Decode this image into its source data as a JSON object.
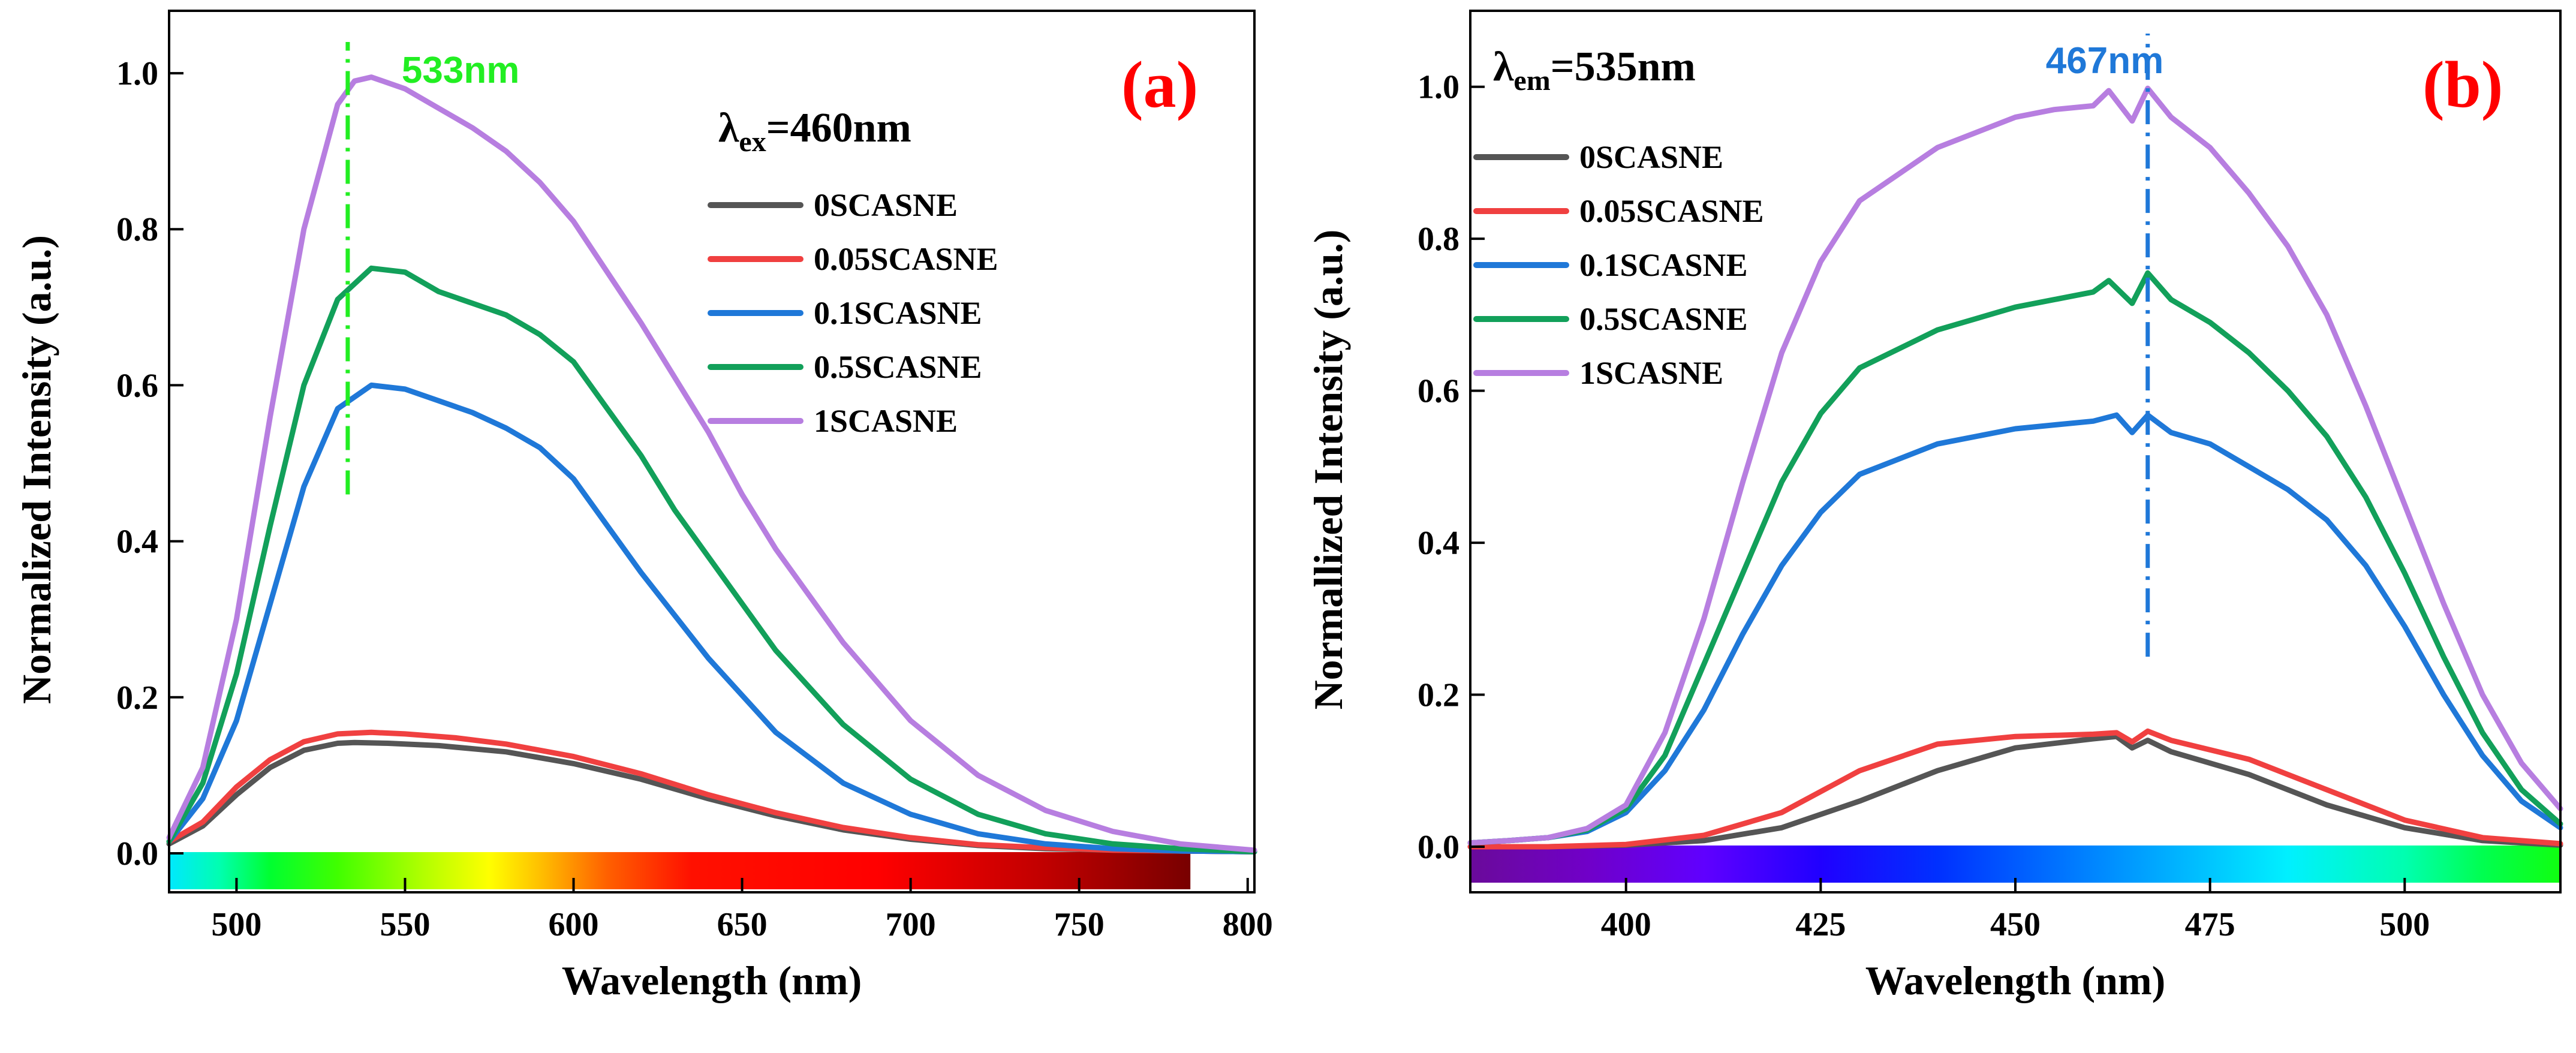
{
  "series_colors": {
    "0SCASNE": "#555555",
    "0.05SCASNE": "#f04040",
    "0.1SCASNE": "#1f78d8",
    "0.5SCASNE": "#12a05a",
    "1SCASNE": "#b77ee0"
  },
  "chart_data": [
    {
      "type": "line",
      "panel": "(a)",
      "condition": {
        "symbol": "λ",
        "subscript": "ex",
        "value": "=460nm"
      },
      "xlabel": "Wavelength (nm)",
      "ylabel": "Normalized Intensity (a.u.)",
      "xlim": [
        480,
        802
      ],
      "ylim": [
        -0.05,
        1.08
      ],
      "xticks": [
        500,
        550,
        600,
        650,
        700,
        750,
        800
      ],
      "yticks": [
        0.0,
        0.2,
        0.4,
        0.6,
        0.8,
        1.0
      ],
      "yticks_text": [
        "0.0",
        "0.2",
        "0.4",
        "0.6",
        "0.8",
        "1.0"
      ],
      "peak_marker": {
        "x": 533,
        "label": "533nm",
        "color": "#22ee22",
        "y_from": 0.46,
        "y_to": 1.04
      },
      "spectrum_bar": {
        "x_from": 480,
        "x_to": 783,
        "stops": [
          {
            "x": 480,
            "color": "#00e8ff"
          },
          {
            "x": 495,
            "color": "#00ffb0"
          },
          {
            "x": 510,
            "color": "#00ff30"
          },
          {
            "x": 530,
            "color": "#40ff00"
          },
          {
            "x": 555,
            "color": "#b0ff00"
          },
          {
            "x": 575,
            "color": "#ffff00"
          },
          {
            "x": 590,
            "color": "#ffc000"
          },
          {
            "x": 610,
            "color": "#ff6000"
          },
          {
            "x": 635,
            "color": "#ff1000"
          },
          {
            "x": 690,
            "color": "#ff0000"
          },
          {
            "x": 740,
            "color": "#c00000"
          },
          {
            "x": 783,
            "color": "#780000"
          }
        ]
      },
      "legend": {
        "placement": "top-right",
        "entries": [
          "0SCASNE",
          "0.05SCASNE",
          "0.1SCASNE",
          "0.5SCASNE",
          "1SCASNE"
        ]
      },
      "series": [
        {
          "name": "0SCASNE",
          "x": [
            480,
            490,
            500,
            510,
            520,
            530,
            535,
            545,
            560,
            580,
            600,
            620,
            640,
            660,
            680,
            700,
            720,
            740,
            760,
            780,
            802
          ],
          "values": [
            0.012,
            0.035,
            0.075,
            0.11,
            0.132,
            0.141,
            0.142,
            0.141,
            0.138,
            0.13,
            0.115,
            0.095,
            0.07,
            0.048,
            0.03,
            0.018,
            0.01,
            0.006,
            0.004,
            0.003,
            0.002
          ]
        },
        {
          "name": "0.05SCASNE",
          "x": [
            480,
            490,
            500,
            510,
            520,
            530,
            540,
            550,
            565,
            580,
            600,
            620,
            640,
            660,
            680,
            700,
            720,
            740,
            760,
            780,
            802
          ],
          "values": [
            0.015,
            0.04,
            0.085,
            0.12,
            0.143,
            0.153,
            0.155,
            0.153,
            0.148,
            0.14,
            0.124,
            0.102,
            0.075,
            0.052,
            0.033,
            0.02,
            0.011,
            0.007,
            0.004,
            0.003,
            0.002
          ]
        },
        {
          "name": "0.1SCASNE",
          "x": [
            480,
            490,
            500,
            510,
            520,
            530,
            540,
            550,
            560,
            570,
            580,
            590,
            600,
            610,
            620,
            640,
            660,
            680,
            700,
            720,
            740,
            760,
            780,
            802
          ],
          "values": [
            0.015,
            0.07,
            0.17,
            0.32,
            0.47,
            0.57,
            0.6,
            0.595,
            0.58,
            0.565,
            0.545,
            0.52,
            0.48,
            0.42,
            0.36,
            0.25,
            0.155,
            0.09,
            0.05,
            0.025,
            0.012,
            0.006,
            0.003,
            0.002
          ]
        },
        {
          "name": "0.5SCASNE",
          "x": [
            480,
            490,
            500,
            510,
            520,
            530,
            540,
            550,
            560,
            570,
            580,
            590,
            600,
            610,
            620,
            630,
            640,
            660,
            680,
            700,
            720,
            740,
            760,
            780,
            802
          ],
          "values": [
            0.015,
            0.09,
            0.23,
            0.42,
            0.6,
            0.71,
            0.75,
            0.745,
            0.72,
            0.705,
            0.69,
            0.665,
            0.63,
            0.57,
            0.51,
            0.44,
            0.38,
            0.26,
            0.165,
            0.095,
            0.05,
            0.025,
            0.012,
            0.006,
            0.002
          ]
        },
        {
          "name": "1SCASNE",
          "x": [
            480,
            490,
            500,
            510,
            520,
            530,
            535,
            540,
            550,
            560,
            570,
            580,
            590,
            600,
            610,
            620,
            630,
            640,
            650,
            660,
            680,
            700,
            720,
            740,
            760,
            780,
            802
          ],
          "values": [
            0.02,
            0.11,
            0.3,
            0.56,
            0.8,
            0.96,
            0.99,
            0.995,
            0.98,
            0.955,
            0.93,
            0.9,
            0.86,
            0.81,
            0.745,
            0.68,
            0.61,
            0.54,
            0.46,
            0.39,
            0.27,
            0.17,
            0.1,
            0.055,
            0.028,
            0.012,
            0.004
          ]
        }
      ]
    },
    {
      "type": "line",
      "panel": "(b)",
      "condition": {
        "symbol": "λ",
        "subscript": "em",
        "value": "=535nm"
      },
      "xlabel": "Wavelength (nm)",
      "ylabel": "Normallized Intensity (a.u.)",
      "xlim": [
        380,
        520
      ],
      "ylim": [
        -0.06,
        1.1
      ],
      "xticks": [
        400,
        425,
        450,
        475,
        500
      ],
      "yticks": [
        0.0,
        0.2,
        0.4,
        0.6,
        0.8,
        1.0
      ],
      "yticks_text": [
        "0.0",
        "0.2",
        "0.4",
        "0.6",
        "0.8",
        "1.0"
      ],
      "peak_marker": {
        "x": 467,
        "label": "467nm",
        "color": "#1f78d8",
        "y_from": 0.25,
        "y_to": 1.07
      },
      "spectrum_bar": {
        "x_from": 380,
        "x_to": 520,
        "stops": [
          {
            "x": 380,
            "color": "#6a0a9a"
          },
          {
            "x": 395,
            "color": "#7000c8"
          },
          {
            "x": 410,
            "color": "#6000ff"
          },
          {
            "x": 425,
            "color": "#2000ff"
          },
          {
            "x": 440,
            "color": "#0030ff"
          },
          {
            "x": 455,
            "color": "#0070ff"
          },
          {
            "x": 470,
            "color": "#00b0ff"
          },
          {
            "x": 485,
            "color": "#00f0ff"
          },
          {
            "x": 500,
            "color": "#00ffb0"
          },
          {
            "x": 510,
            "color": "#00ff50"
          },
          {
            "x": 520,
            "color": "#10ff10"
          }
        ]
      },
      "legend": {
        "placement": "top-left",
        "entries": [
          "0SCASNE",
          "0.05SCASNE",
          "0.1SCASNE",
          "0.5SCASNE",
          "1SCASNE"
        ]
      },
      "series": [
        {
          "name": "0SCASNE",
          "x": [
            380,
            390,
            400,
            410,
            420,
            430,
            440,
            450,
            460,
            463,
            465,
            467,
            470,
            480,
            490,
            500,
            510,
            520
          ],
          "values": [
            0.0,
            0.0,
            0.002,
            0.008,
            0.025,
            0.06,
            0.1,
            0.13,
            0.142,
            0.145,
            0.13,
            0.14,
            0.125,
            0.095,
            0.055,
            0.025,
            0.008,
            0.002
          ]
        },
        {
          "name": "0.05SCASNE",
          "x": [
            380,
            390,
            400,
            410,
            420,
            430,
            440,
            450,
            460,
            463,
            465,
            467,
            470,
            480,
            490,
            500,
            510,
            520
          ],
          "values": [
            0.0,
            0.0,
            0.003,
            0.015,
            0.045,
            0.1,
            0.135,
            0.145,
            0.148,
            0.15,
            0.138,
            0.152,
            0.14,
            0.115,
            0.075,
            0.035,
            0.012,
            0.004
          ]
        },
        {
          "name": "0.1SCASNE",
          "x": [
            380,
            385,
            390,
            395,
            400,
            405,
            410,
            415,
            420,
            425,
            430,
            440,
            450,
            455,
            460,
            463,
            465,
            467,
            470,
            475,
            480,
            485,
            490,
            495,
            500,
            505,
            510,
            515,
            520
          ],
          "values": [
            0.005,
            0.008,
            0.012,
            0.02,
            0.045,
            0.1,
            0.18,
            0.28,
            0.37,
            0.44,
            0.49,
            0.53,
            0.55,
            0.555,
            0.56,
            0.568,
            0.545,
            0.568,
            0.545,
            0.53,
            0.5,
            0.47,
            0.43,
            0.37,
            0.29,
            0.2,
            0.12,
            0.06,
            0.025
          ]
        },
        {
          "name": "0.5SCASNE",
          "x": [
            380,
            385,
            390,
            395,
            400,
            405,
            410,
            415,
            420,
            425,
            430,
            440,
            450,
            455,
            460,
            462,
            465,
            467,
            470,
            475,
            480,
            485,
            490,
            495,
            500,
            505,
            510,
            515,
            520
          ],
          "values": [
            0.005,
            0.008,
            0.012,
            0.022,
            0.05,
            0.12,
            0.24,
            0.36,
            0.48,
            0.57,
            0.63,
            0.68,
            0.71,
            0.72,
            0.73,
            0.745,
            0.715,
            0.755,
            0.72,
            0.69,
            0.65,
            0.6,
            0.54,
            0.46,
            0.36,
            0.25,
            0.15,
            0.075,
            0.03
          ]
        },
        {
          "name": "1SCASNE",
          "x": [
            380,
            385,
            390,
            395,
            400,
            405,
            410,
            415,
            420,
            425,
            430,
            440,
            450,
            455,
            460,
            462,
            465,
            467,
            470,
            475,
            480,
            485,
            490,
            495,
            500,
            505,
            510,
            515,
            520
          ],
          "values": [
            0.005,
            0.008,
            0.012,
            0.024,
            0.055,
            0.15,
            0.3,
            0.48,
            0.65,
            0.77,
            0.85,
            0.92,
            0.96,
            0.97,
            0.975,
            0.995,
            0.955,
            0.998,
            0.96,
            0.92,
            0.86,
            0.79,
            0.7,
            0.58,
            0.45,
            0.32,
            0.2,
            0.11,
            0.05
          ]
        }
      ]
    }
  ]
}
